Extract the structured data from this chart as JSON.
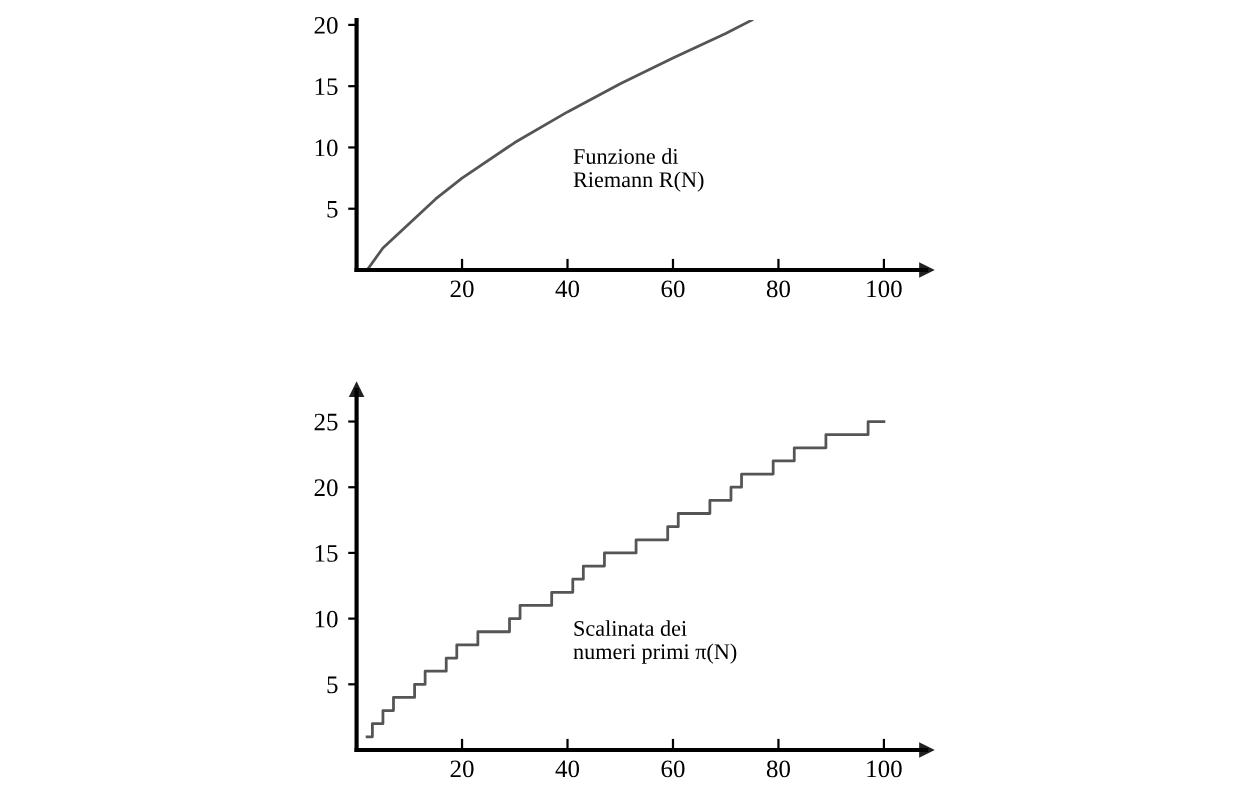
{
  "chart_data": [
    {
      "type": "line",
      "x": [
        2,
        5,
        10,
        15,
        20,
        30,
        40,
        50,
        60,
        70,
        75
      ],
      "values": [
        0,
        1.8,
        3.8,
        5.8,
        7.5,
        10.4,
        12.9,
        15.2,
        17.3,
        19.3,
        20.4
      ],
      "color": "#555555",
      "xlim": [
        0,
        108
      ],
      "ylim": [
        0,
        20.4
      ],
      "xticks": [
        20,
        40,
        60,
        80,
        100
      ],
      "yticks": [
        5,
        10,
        15,
        20
      ],
      "annotations": [
        "Funzione di\nRiemann R(N)"
      ],
      "grid": false,
      "legend": false
    },
    {
      "type": "step",
      "x": [
        2,
        3,
        5,
        7,
        11,
        13,
        17,
        19,
        23,
        29,
        31,
        37,
        41,
        43,
        47,
        53,
        59,
        61,
        67,
        71,
        73,
        79,
        83,
        89,
        97,
        100
      ],
      "values": [
        1,
        2,
        3,
        4,
        5,
        6,
        7,
        8,
        9,
        10,
        11,
        12,
        13,
        14,
        15,
        16,
        17,
        18,
        19,
        20,
        21,
        22,
        23,
        24,
        25,
        25
      ],
      "color": "#555555",
      "xlim": [
        0,
        108
      ],
      "ylim": [
        0,
        27.4
      ],
      "xticks": [
        20,
        40,
        60,
        80,
        100
      ],
      "yticks": [
        5,
        10,
        15,
        20,
        25
      ],
      "annotations": [
        "Scalinata dei\nnumeri primi π(N)"
      ],
      "grid": false,
      "legend": false
    }
  ]
}
